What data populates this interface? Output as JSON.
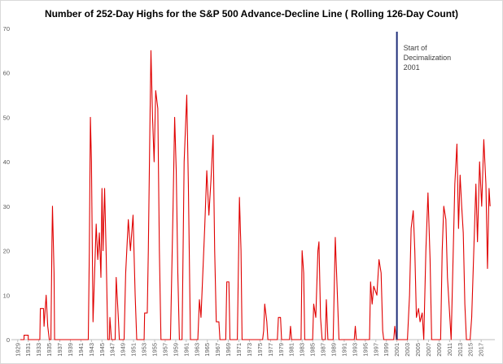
{
  "chart_data": {
    "type": "line",
    "title": "Number of 252-Day Highs for the S&P 500 Advance-Decline Line ( Rolling 126-Day Count)",
    "color": "#e00000",
    "x": [
      1929.5,
      1930.2,
      1930.2,
      1931,
      1931,
      1933.2,
      1933.3,
      1933.9,
      1934,
      1934.4,
      1934.7,
      1935,
      1935.3,
      1935.5,
      1935.6,
      1935.9,
      1936,
      1942.4,
      1942.6,
      1942.8,
      1943,
      1943.3,
      1943.6,
      1943.9,
      1944.2,
      1944.5,
      1944.8,
      1945,
      1945.2,
      1945.5,
      1945.8,
      1946.1,
      1946.4,
      1946.5,
      1946.8,
      1947.5,
      1947.7,
      1948.1,
      1948.3,
      1949.2,
      1949.5,
      1950,
      1950.4,
      1950.9,
      1951.3,
      1951.6,
      1953,
      1953.1,
      1953.6,
      1953.8,
      1954.1,
      1954.3,
      1954.6,
      1954.9,
      1955.2,
      1955.6,
      1955.9,
      1956.2,
      1958,
      1958.5,
      1958.8,
      1959.1,
      1959.4,
      1959.7,
      1960.2,
      1960.6,
      1961.1,
      1961.4,
      1961.8,
      1963.2,
      1963.5,
      1963.8,
      1964.5,
      1964.9,
      1965.3,
      1965.7,
      1966.1,
      1966.4,
      1966.7,
      1967.2,
      1967.4,
      1968.5,
      1968.7,
      1969.1,
      1969.3,
      1970.7,
      1971.1,
      1971.4,
      1971.6,
      1975.5,
      1975.7,
      1975.9,
      1976.3,
      1976.5,
      1978.3,
      1978.5,
      1978.9,
      1979.1,
      1980.6,
      1980.8,
      1981,
      1982.8,
      1983,
      1983.3,
      1983.5,
      1985,
      1985.2,
      1985.6,
      1986,
      1986.2,
      1986.5,
      1986.8,
      1987.4,
      1987.6,
      1987.9,
      1988.9,
      1989.3,
      1989.7,
      1990,
      1992.9,
      1993.1,
      1993.3,
      1995.8,
      1996,
      1996.3,
      1996.6,
      1997.2,
      1997.6,
      1998,
      1998.3,
      1998.5,
      2000.4,
      2000.6,
      2000.9,
      2003,
      2003.4,
      2003.7,
      2004.1,
      2004.4,
      2004.7,
      2005.1,
      2005.4,
      2005.8,
      2006.1,
      2006.5,
      2006.9,
      2007.3,
      2007.6,
      2009.3,
      2009.6,
      2009.9,
      2010.3,
      2010.6,
      2011,
      2011.3,
      2011.7,
      2012,
      2012.4,
      2012.7,
      2013,
      2013.3,
      2013.6,
      2013.9,
      2014.2,
      2014.9,
      2015.2,
      2015.6,
      2016,
      2016.3,
      2016.7,
      2017.1,
      2017.5,
      2017.9,
      2018.2,
      2018.5,
      2018.7
    ],
    "values": [
      0,
      0,
      1,
      1,
      0,
      0,
      7,
      7,
      3,
      10,
      3,
      0,
      0,
      22,
      30,
      15,
      0,
      0,
      20,
      50,
      40,
      4,
      15,
      26,
      18,
      24,
      14,
      34,
      20,
      34,
      19,
      0,
      0,
      5,
      0,
      0,
      14,
      5,
      0,
      0,
      15,
      27,
      20,
      28,
      10,
      0,
      0,
      6,
      6,
      20,
      48,
      65,
      50,
      40,
      56,
      52,
      20,
      0,
      0,
      30,
      50,
      38,
      15,
      0,
      0,
      40,
      55,
      35,
      0,
      0,
      9,
      5,
      25,
      38,
      28,
      36,
      46,
      20,
      4,
      4,
      0,
      0,
      13,
      13,
      0,
      0,
      32,
      20,
      0,
      0,
      2,
      8,
      4,
      0,
      0,
      5,
      5,
      0,
      0,
      3,
      0,
      0,
      20,
      15,
      0,
      0,
      8,
      5,
      20,
      22,
      5,
      0,
      0,
      9,
      0,
      0,
      23,
      10,
      0,
      0,
      3,
      0,
      0,
      13,
      8,
      12,
      10,
      18,
      15,
      2,
      0,
      0,
      3,
      0,
      0,
      10,
      25,
      29,
      20,
      5,
      7,
      4,
      6,
      0,
      20,
      33,
      18,
      0,
      0,
      20,
      30,
      27,
      14,
      6,
      0,
      20,
      35,
      44,
      25,
      37,
      30,
      24,
      8,
      0,
      0,
      5,
      20,
      35,
      22,
      40,
      30,
      45,
      35,
      16,
      34,
      30
    ],
    "xlim": [
      1927.8,
      2019.6
    ],
    "xticks": [
      1929,
      1931,
      1933,
      1935,
      1937,
      1939,
      1941,
      1943,
      1945,
      1947,
      1949,
      1951,
      1953,
      1955,
      1957,
      1959,
      1961,
      1963,
      1965,
      1967,
      1969,
      1971,
      1973,
      1975,
      1977,
      1979,
      1981,
      1983,
      1985,
      1987,
      1989,
      1991,
      1993,
      1995,
      1997,
      1999,
      2001,
      2003,
      2005,
      2007,
      2009,
      2011,
      2013,
      2015,
      2017
    ],
    "ylim": [
      0,
      70
    ],
    "yticks": [
      0,
      10,
      20,
      30,
      40,
      50,
      60,
      70
    ],
    "vline": {
      "x": 2001,
      "color": "#1f2f7a"
    },
    "annotation": [
      "Start of",
      "Decimalization",
      "2001"
    ]
  }
}
